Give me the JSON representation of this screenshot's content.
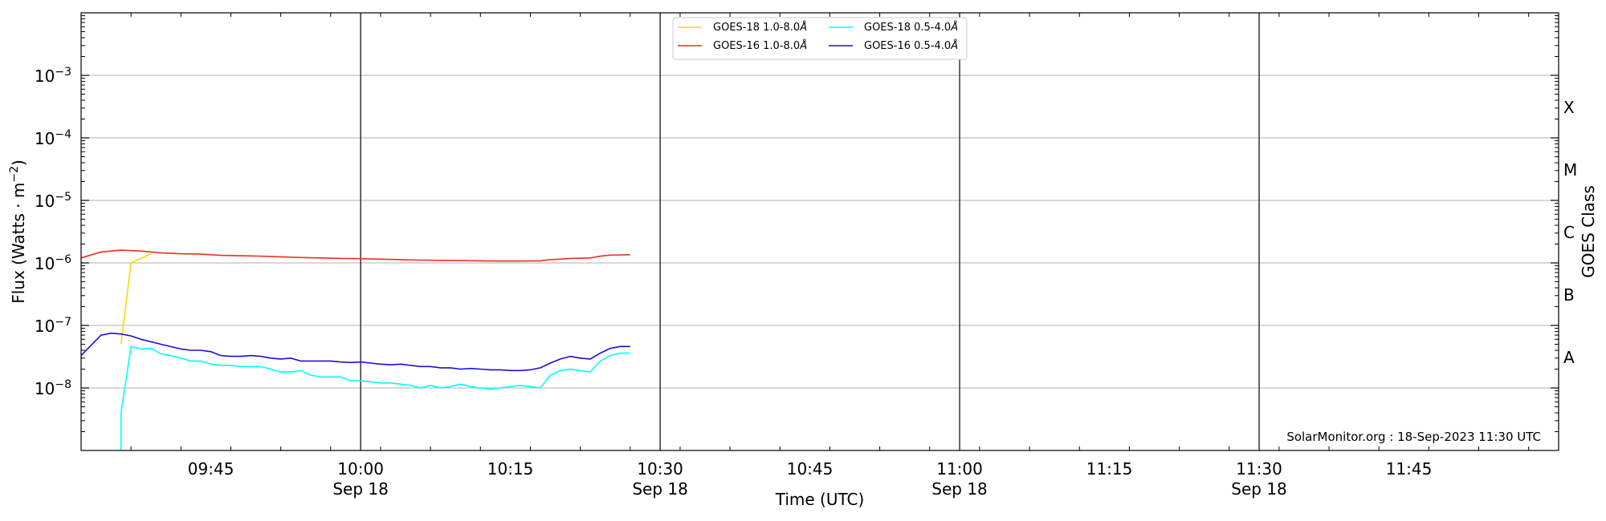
{
  "chart_data": {
    "type": "line",
    "xlabel": "Time (UTC)",
    "ylabel_base": "Flux (Watts · m",
    "ylabel_sup": "−2",
    "ylabel_close": ")",
    "right_label": "GOES Class",
    "y_scale": "log",
    "ylim": [
      1e-09,
      0.01
    ],
    "xlim": [
      "09:32",
      "12:00"
    ],
    "grid": "horizontal",
    "legend_position": "top-center",
    "credit": "SolarMonitor.org : 18-Sep-2023 11:30 UTC",
    "y_ticks": [
      {
        "base": "10",
        "exp": "−8",
        "value": 1e-08
      },
      {
        "base": "10",
        "exp": "−7",
        "value": 1e-07
      },
      {
        "base": "10",
        "exp": "−6",
        "value": 1e-06
      },
      {
        "base": "10",
        "exp": "−5",
        "value": 1e-05
      },
      {
        "base": "10",
        "exp": "−4",
        "value": 0.0001
      },
      {
        "base": "10",
        "exp": "−3",
        "value": 0.001
      }
    ],
    "x_ticks": [
      {
        "time": "09:45",
        "label": "09:45",
        "sub": ""
      },
      {
        "time": "10:00",
        "label": "10:00",
        "sub": "Sep 18"
      },
      {
        "time": "10:15",
        "label": "10:15",
        "sub": ""
      },
      {
        "time": "10:30",
        "label": "10:30",
        "sub": "Sep 18"
      },
      {
        "time": "10:45",
        "label": "10:45",
        "sub": ""
      },
      {
        "time": "11:00",
        "label": "11:00",
        "sub": "Sep 18"
      },
      {
        "time": "11:15",
        "label": "11:15",
        "sub": ""
      },
      {
        "time": "11:30",
        "label": "11:30",
        "sub": "Sep 18"
      },
      {
        "time": "11:45",
        "label": "11:45",
        "sub": ""
      }
    ],
    "vlines": [
      "10:00",
      "10:30",
      "11:00",
      "11:30"
    ],
    "classes": [
      {
        "label": "A",
        "value": 3.16e-08
      },
      {
        "label": "B",
        "value": 3.16e-07
      },
      {
        "label": "C",
        "value": 3.16e-06
      },
      {
        "label": "M",
        "value": 3.16e-05
      },
      {
        "label": "X",
        "value": 0.000316
      }
    ],
    "series": [
      {
        "name": "GOES-18 1.0-8.0",
        "unit": "Å",
        "color": "#ffd700",
        "points": [
          [
            "09:36",
            "5e-8"
          ],
          [
            "09:37",
            "1e-6"
          ],
          [
            "09:39",
            "1.4e-6"
          ]
        ]
      },
      {
        "name": "GOES-18 0.5-4.0",
        "unit": "Å",
        "color": "#00ffff",
        "points": [
          [
            "09:36",
            "1e-9"
          ],
          [
            "09:36",
            "4e-9"
          ],
          [
            "09:37",
            "4.6e-8"
          ],
          [
            "09:38",
            "4.2e-8"
          ],
          [
            "09:39",
            "4.3e-8"
          ],
          [
            "09:40",
            "3.5e-8"
          ],
          [
            "09:41",
            "3.3e-8"
          ],
          [
            "09:42",
            "3e-8"
          ],
          [
            "09:43",
            "2.7e-8"
          ],
          [
            "09:44",
            "2.7e-8"
          ],
          [
            "09:45",
            "2.4e-8"
          ],
          [
            "09:46",
            "2.3e-8"
          ],
          [
            "09:47",
            "2.3e-8"
          ],
          [
            "09:48",
            "2.2e-8"
          ],
          [
            "09:49",
            "2.2e-8"
          ],
          [
            "09:50",
            "2.2e-8"
          ],
          [
            "09:51",
            "2e-8"
          ],
          [
            "09:52",
            "1.8e-8"
          ],
          [
            "09:53",
            "1.8e-8"
          ],
          [
            "09:54",
            "1.9e-8"
          ],
          [
            "09:55",
            "1.6e-8"
          ],
          [
            "09:56",
            "1.5e-8"
          ],
          [
            "09:57",
            "1.5e-8"
          ],
          [
            "09:58",
            "1.5e-8"
          ],
          [
            "09:59",
            "1.3e-8"
          ],
          [
            "10:00",
            "1.3e-8"
          ],
          [
            "10:01",
            "1.25e-8"
          ],
          [
            "10:02",
            "1.2e-8"
          ],
          [
            "10:03",
            "1.2e-8"
          ],
          [
            "10:04",
            "1.15e-8"
          ],
          [
            "10:05",
            "1.1e-8"
          ],
          [
            "10:06",
            "1e-8"
          ],
          [
            "10:07",
            "1.1e-8"
          ],
          [
            "10:08",
            "1e-8"
          ],
          [
            "10:09",
            "1.05e-8"
          ],
          [
            "10:10",
            "1.15e-8"
          ],
          [
            "10:11",
            "1.05e-8"
          ],
          [
            "10:12",
            "1e-8"
          ],
          [
            "10:13",
            "9.5e-9"
          ],
          [
            "10:14",
            "1e-8"
          ],
          [
            "10:15",
            "1.05e-8"
          ],
          [
            "10:16",
            "1.1e-8"
          ],
          [
            "10:17",
            "1.05e-8"
          ],
          [
            "10:18",
            "1e-8"
          ],
          [
            "10:19",
            "1.6e-8"
          ],
          [
            "10:20",
            "1.9e-8"
          ],
          [
            "10:21",
            "2e-8"
          ],
          [
            "10:22",
            "1.9e-8"
          ],
          [
            "10:23",
            "1.8e-8"
          ],
          [
            "10:24",
            "2.7e-8"
          ],
          [
            "10:25",
            "3.3e-8"
          ],
          [
            "10:26",
            "3.6e-8"
          ],
          [
            "10:27",
            "3.6e-8"
          ]
        ]
      },
      {
        "name": "GOES-16 1.0-8.0",
        "unit": "Å",
        "color": "#e8321e",
        "points": [
          [
            "09:32",
            "1.2e-6"
          ],
          [
            "09:34",
            "1.5e-6"
          ],
          [
            "09:36",
            "1.6e-6"
          ],
          [
            "09:38",
            "1.55e-6"
          ],
          [
            "09:40",
            "1.45e-6"
          ],
          [
            "09:42",
            "1.4e-6"
          ],
          [
            "09:44",
            "1.38e-6"
          ],
          [
            "09:46",
            "1.32e-6"
          ],
          [
            "09:48",
            "1.3e-6"
          ],
          [
            "09:50",
            "1.28e-6"
          ],
          [
            "09:52",
            "1.25e-6"
          ],
          [
            "09:54",
            "1.22e-6"
          ],
          [
            "09:56",
            "1.2e-6"
          ],
          [
            "09:58",
            "1.18e-6"
          ],
          [
            "10:00",
            "1.17e-6"
          ],
          [
            "10:02",
            "1.15e-6"
          ],
          [
            "10:04",
            "1.13e-6"
          ],
          [
            "10:06",
            "1.11e-6"
          ],
          [
            "10:08",
            "1.1e-6"
          ],
          [
            "10:10",
            "1.09e-6"
          ],
          [
            "10:12",
            "1.08e-6"
          ],
          [
            "10:14",
            "1.07e-6"
          ],
          [
            "10:16",
            "1.07e-6"
          ],
          [
            "10:18",
            "1.08e-6"
          ],
          [
            "10:19",
            "1.13e-6"
          ],
          [
            "10:20",
            "1.15e-6"
          ],
          [
            "10:21",
            "1.18e-6"
          ],
          [
            "10:23",
            "1.2e-6"
          ],
          [
            "10:24",
            "1.28e-6"
          ],
          [
            "10:25",
            "1.33e-6"
          ],
          [
            "10:27",
            "1.35e-6"
          ]
        ]
      },
      {
        "name": "GOES-16 0.5-4.0",
        "unit": "Å",
        "color": "#1a10d6",
        "points": [
          [
            "09:32",
            "3.3e-8"
          ],
          [
            "09:34",
            "7e-8"
          ],
          [
            "09:35",
            "7.5e-8"
          ],
          [
            "09:36",
            "7.3e-8"
          ],
          [
            "09:37",
            "6.8e-8"
          ],
          [
            "09:38",
            "6e-8"
          ],
          [
            "09:40",
            "5e-8"
          ],
          [
            "09:42",
            "4.2e-8"
          ],
          [
            "09:43",
            "4e-8"
          ],
          [
            "09:44",
            "4e-8"
          ],
          [
            "09:45",
            "3.8e-8"
          ],
          [
            "09:46",
            "3.3e-8"
          ],
          [
            "09:47",
            "3.2e-8"
          ],
          [
            "09:48",
            "3.2e-8"
          ],
          [
            "09:49",
            "3.3e-8"
          ],
          [
            "09:50",
            "3.2e-8"
          ],
          [
            "09:51",
            "3e-8"
          ],
          [
            "09:52",
            "2.9e-8"
          ],
          [
            "09:53",
            "3e-8"
          ],
          [
            "09:54",
            "2.7e-8"
          ],
          [
            "09:56",
            "2.7e-8"
          ],
          [
            "09:57",
            "2.7e-8"
          ],
          [
            "09:58",
            "2.6e-8"
          ],
          [
            "09:59",
            "2.55e-8"
          ],
          [
            "10:00",
            "2.6e-8"
          ],
          [
            "10:01",
            "2.5e-8"
          ],
          [
            "10:02",
            "2.4e-8"
          ],
          [
            "10:03",
            "2.35e-8"
          ],
          [
            "10:04",
            "2.4e-8"
          ],
          [
            "10:05",
            "2.3e-8"
          ],
          [
            "10:06",
            "2.2e-8"
          ],
          [
            "10:07",
            "2.2e-8"
          ],
          [
            "10:08",
            "2.1e-8"
          ],
          [
            "10:09",
            "2.1e-8"
          ],
          [
            "10:10",
            "2e-8"
          ],
          [
            "10:11",
            "2.05e-8"
          ],
          [
            "10:12",
            "2e-8"
          ],
          [
            "10:13",
            "1.95e-8"
          ],
          [
            "10:14",
            "1.95e-8"
          ],
          [
            "10:15",
            "1.9e-8"
          ],
          [
            "10:16",
            "1.9e-8"
          ],
          [
            "10:17",
            "1.95e-8"
          ],
          [
            "10:18",
            "2.1e-8"
          ],
          [
            "10:19",
            "2.5e-8"
          ],
          [
            "10:20",
            "2.9e-8"
          ],
          [
            "10:21",
            "3.2e-8"
          ],
          [
            "10:22",
            "3e-8"
          ],
          [
            "10:23",
            "2.9e-8"
          ],
          [
            "10:24",
            "3.6e-8"
          ],
          [
            "10:25",
            "4.3e-8"
          ],
          [
            "10:26",
            "4.6e-8"
          ],
          [
            "10:27",
            "4.6e-8"
          ]
        ]
      }
    ]
  }
}
